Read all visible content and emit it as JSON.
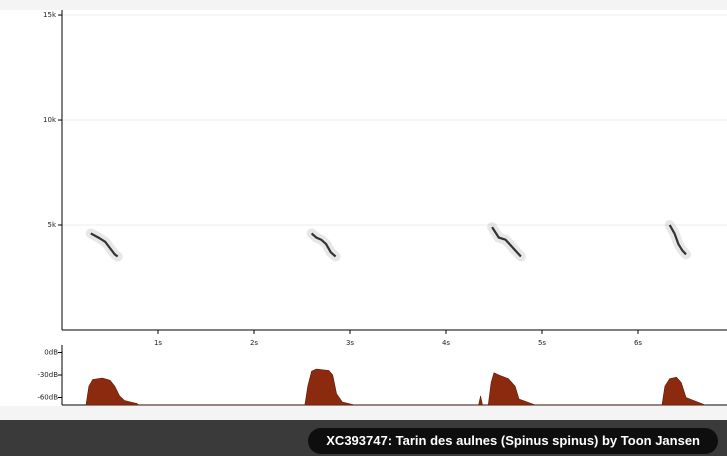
{
  "spectrogram": {
    "type": "spectrogram",
    "xlim": [
      0,
      6.927
    ],
    "ylim": [
      0,
      15240
    ],
    "xticks": [
      {
        "value": 1,
        "label": "1s"
      },
      {
        "value": 2,
        "label": "2s"
      },
      {
        "value": 3,
        "label": "3s"
      },
      {
        "value": 4,
        "label": "4s"
      },
      {
        "value": 5,
        "label": "5s"
      },
      {
        "value": 6,
        "label": "6s"
      }
    ],
    "yticks": [
      {
        "value": 5000,
        "label": "5k"
      },
      {
        "value": 10000,
        "label": "10k"
      },
      {
        "value": 15000,
        "label": "15k"
      }
    ],
    "color": "#333333",
    "calls": [
      {
        "x": [
          0.3,
          0.38,
          0.45,
          0.5,
          0.55,
          0.58
        ],
        "y": [
          4600,
          4400,
          4200,
          3900,
          3600,
          3500
        ]
      },
      {
        "x": [
          2.6,
          2.65,
          2.7,
          2.75,
          2.8,
          2.85
        ],
        "y": [
          4600,
          4400,
          4300,
          4100,
          3700,
          3500
        ]
      },
      {
        "x": [
          4.48,
          4.55,
          4.62,
          4.68,
          4.72,
          4.78
        ],
        "y": [
          4900,
          4400,
          4300,
          4000,
          3800,
          3500
        ]
      },
      {
        "x": [
          6.33,
          6.38,
          6.42,
          6.46,
          6.5
        ],
        "y": [
          5000,
          4600,
          4100,
          3800,
          3600
        ]
      }
    ]
  },
  "amplitude": {
    "type": "area",
    "xlim": [
      0,
      6.927
    ],
    "ylim": [
      -70,
      10
    ],
    "yticks": [
      {
        "value": 0,
        "label": "0dB"
      },
      {
        "value": -30,
        "label": "-30dB"
      },
      {
        "value": -60,
        "label": "-60dB"
      }
    ],
    "color": "#8b2a0e",
    "x": [
      0.25,
      0.28,
      0.32,
      0.42,
      0.5,
      0.55,
      0.6,
      0.65,
      0.78,
      0.8,
      2.53,
      2.56,
      2.6,
      2.65,
      2.78,
      2.82,
      2.86,
      2.92,
      3.05,
      4.34,
      4.36,
      4.38,
      4.44,
      4.47,
      4.5,
      4.55,
      4.65,
      4.72,
      4.76,
      4.93,
      6.25,
      6.28,
      6.33,
      6.4,
      6.45,
      6.5,
      6.6,
      6.7
    ],
    "values": [
      -70,
      -45,
      -36,
      -34,
      -37,
      -45,
      -58,
      -64,
      -68,
      -70,
      -70,
      -45,
      -25,
      -22,
      -24,
      -30,
      -55,
      -66,
      -70,
      -70,
      -58,
      -70,
      -70,
      -40,
      -27,
      -30,
      -35,
      -45,
      -62,
      -70,
      -70,
      -45,
      -35,
      -33,
      -40,
      -60,
      -65,
      -70
    ]
  },
  "caption": "XC393747: Tarin des aulnes (Spinus spinus) by Toon Jansen"
}
